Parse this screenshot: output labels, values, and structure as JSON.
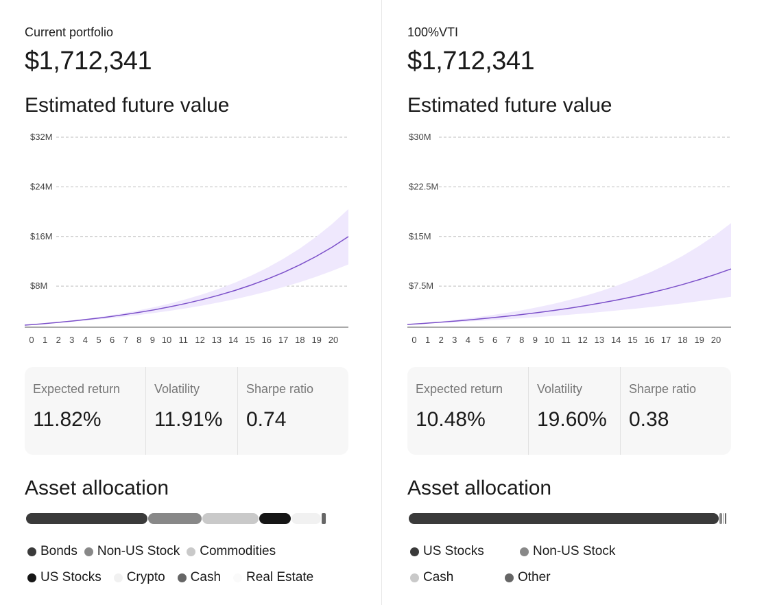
{
  "colors": {
    "line": "#7b4fc9",
    "band": "#efe8fd",
    "grid": "#bdbdbd",
    "card": "#f7f7f7"
  },
  "panels": [
    {
      "subtitle": "Current portfolio",
      "value": "$1,712,341",
      "chart_title": "Estimated future value",
      "stats": [
        {
          "label": "Expected return",
          "value": "11.82%"
        },
        {
          "label": "Volatility",
          "value": "11.91%"
        },
        {
          "label": "Sharpe ratio",
          "value": "0.74"
        }
      ],
      "allocation_title": "Asset allocation",
      "allocation": [
        {
          "name": "Bonds",
          "color": "#3a3a3a",
          "pct": 38.5
        },
        {
          "name": "Non-US Stock",
          "color": "#888888",
          "pct": 17
        },
        {
          "name": "Commodities",
          "color": "#c9c9c9",
          "pct": 17.8
        },
        {
          "name": "US Stocks",
          "color": "#161616",
          "pct": 10
        },
        {
          "name": "Crypto",
          "color": "#f1f1f1",
          "pct": 9.3
        },
        {
          "name": "Cash",
          "color": "#666666",
          "pct": 1.3
        },
        {
          "name": "Real Estate",
          "color": "#fafafa",
          "pct": 0.3
        }
      ]
    },
    {
      "subtitle": "100%VTI",
      "value": "$1,712,341",
      "chart_title": "Estimated future value",
      "stats": [
        {
          "label": "Expected return",
          "value": "10.48%"
        },
        {
          "label": "Volatility",
          "value": "19.60%"
        },
        {
          "label": "Sharpe ratio",
          "value": "0.38"
        }
      ],
      "allocation_title": "Asset allocation",
      "allocation": [
        {
          "name": "US Stocks",
          "color": "#3a3a3a",
          "pct": 98.2
        },
        {
          "name": "Non-US Stock",
          "color": "#888888",
          "pct": 1.0
        },
        {
          "name": "Cash",
          "color": "#c9c9c9",
          "pct": 0.4
        },
        {
          "name": "Other",
          "color": "#666666",
          "pct": 0.4
        }
      ]
    }
  ],
  "chart_data": [
    {
      "type": "area",
      "title": "Estimated future value",
      "x": [
        0,
        1,
        2,
        3,
        4,
        5,
        6,
        7,
        8,
        9,
        10,
        11,
        12,
        13,
        14,
        15,
        16,
        17,
        18,
        19,
        20
      ],
      "ylim": [
        0,
        32
      ],
      "yticks": [
        8,
        16,
        24,
        32
      ],
      "ytick_labels": [
        "$8M",
        "$16M",
        "$24M",
        "$32M"
      ],
      "unit": "$M",
      "series": [
        {
          "name": "median",
          "values": [
            1.71,
            1.91,
            2.14,
            2.39,
            2.68,
            2.99,
            3.35,
            3.74,
            4.18,
            4.68,
            5.23,
            5.85,
            6.54,
            7.31,
            8.18,
            9.14,
            10.22,
            11.43,
            12.78,
            14.29,
            15.98
          ]
        },
        {
          "name": "upper",
          "values": [
            1.71,
            1.94,
            2.19,
            2.48,
            2.81,
            3.18,
            3.6,
            4.07,
            4.61,
            5.22,
            5.91,
            6.69,
            7.57,
            8.57,
            9.7,
            10.98,
            12.43,
            14.07,
            15.93,
            18.03,
            20.41
          ]
        },
        {
          "name": "lower",
          "values": [
            1.71,
            1.88,
            2.07,
            2.28,
            2.5,
            2.75,
            3.03,
            3.33,
            3.67,
            4.03,
            4.44,
            4.88,
            5.37,
            5.9,
            6.49,
            7.14,
            7.86,
            8.64,
            9.51,
            10.46,
            11.5
          ]
        }
      ]
    },
    {
      "type": "area",
      "title": "Estimated future value",
      "x": [
        0,
        1,
        2,
        3,
        4,
        5,
        6,
        7,
        8,
        9,
        10,
        11,
        12,
        13,
        14,
        15,
        16,
        17,
        18,
        19,
        20
      ],
      "ylim": [
        0,
        30
      ],
      "yticks": [
        7.5,
        15,
        22.5,
        30
      ],
      "ytick_labels": [
        "$7.5M",
        "$15M",
        "$22.5M",
        "$30M"
      ],
      "unit": "$M",
      "series": [
        {
          "name": "median",
          "values": [
            1.71,
            1.87,
            2.04,
            2.23,
            2.44,
            2.67,
            2.92,
            3.19,
            3.48,
            3.81,
            4.16,
            4.55,
            4.97,
            5.43,
            5.93,
            6.48,
            7.08,
            7.74,
            8.46,
            9.24,
            10.1
          ]
        },
        {
          "name": "upper",
          "values": [
            1.71,
            1.92,
            2.15,
            2.41,
            2.71,
            3.04,
            3.41,
            3.82,
            4.29,
            4.81,
            5.4,
            6.05,
            6.79,
            7.62,
            8.54,
            9.58,
            10.75,
            12.06,
            13.53,
            15.17,
            17.02
          ]
        },
        {
          "name": "lower",
          "values": [
            1.71,
            1.82,
            1.94,
            2.06,
            2.19,
            2.33,
            2.48,
            2.64,
            2.81,
            2.99,
            3.18,
            3.38,
            3.6,
            3.83,
            4.07,
            4.33,
            4.61,
            4.9,
            5.22,
            5.55,
            5.9
          ]
        }
      ]
    }
  ]
}
